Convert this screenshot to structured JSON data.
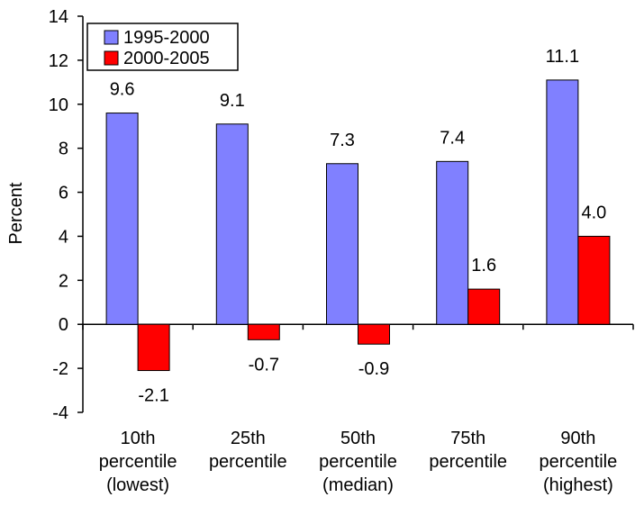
{
  "chart_data": {
    "type": "bar",
    "title": "",
    "xlabel": "",
    "ylabel": "Percent",
    "ylim": [
      -4,
      14
    ],
    "yticks": [
      -4,
      -2,
      0,
      2,
      4,
      6,
      8,
      10,
      12,
      14
    ],
    "ytick_labels": [
      "-4",
      "-2",
      "0",
      "2",
      "4",
      "6",
      "8",
      "10",
      "12",
      "14"
    ],
    "categories": [
      [
        "10th",
        "percentile",
        "(lowest)"
      ],
      [
        "25th",
        "percentile",
        ""
      ],
      [
        "50th",
        "percentile",
        "(median)"
      ],
      [
        "75th",
        "percentile",
        ""
      ],
      [
        "90th",
        "percentile",
        "(highest)"
      ]
    ],
    "series": [
      {
        "name": "1995-2000",
        "color": "#8080ff",
        "values": [
          9.6,
          9.1,
          7.3,
          7.4,
          11.1
        ],
        "labels": [
          "9.6",
          "9.1",
          "7.3",
          "7.4",
          "11.1"
        ]
      },
      {
        "name": "2000-2005",
        "color": "#ff0000",
        "values": [
          -2.1,
          -0.7,
          -0.9,
          1.6,
          4.0
        ],
        "labels": [
          "-2.1",
          "-0.7",
          "-0.9",
          "1.6",
          "4.0"
        ]
      }
    ],
    "grid": false,
    "legend_position": "top-left"
  }
}
